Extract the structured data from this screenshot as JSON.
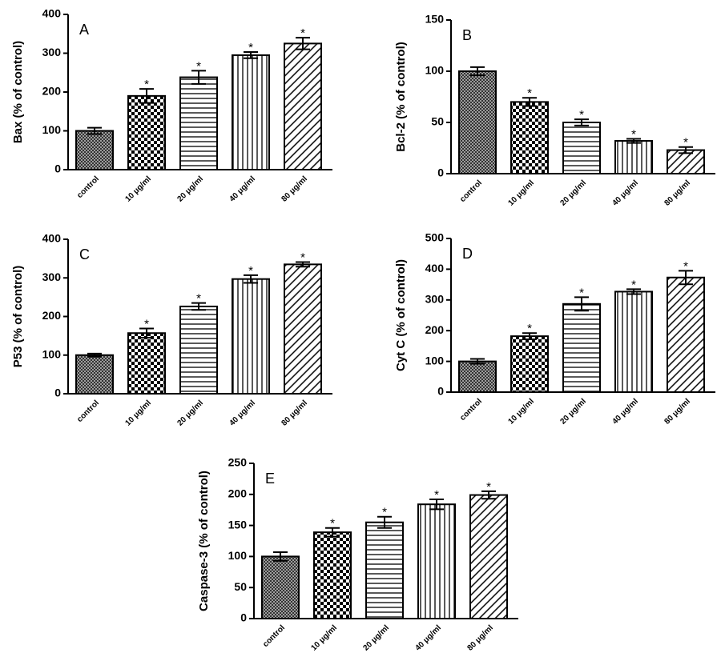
{
  "chart_data": [
    {
      "type": "bar",
      "label": "A",
      "ylabel": "Bax  (% of control)",
      "categories": [
        "control",
        "10 μg/ml",
        "20 μg/ml",
        "40 μg/ml",
        "80 μg/ml"
      ],
      "values": [
        100,
        190,
        238,
        295,
        325
      ],
      "errors": [
        8,
        18,
        17,
        8,
        15
      ],
      "annotations": [
        null,
        "*",
        "*",
        "*",
        "*"
      ],
      "patterns": [
        "crosshatch",
        "checker",
        "horizontal",
        "vertical",
        "diagonal"
      ],
      "color": "#000000",
      "ylim": [
        0,
        400
      ],
      "yticks": [
        0,
        100,
        200,
        300,
        400
      ]
    },
    {
      "type": "bar",
      "label": "B",
      "ylabel": "Bcl-2  (% of control)",
      "categories": [
        "control",
        "10 μg/ml",
        "20 μg/ml",
        "40 μg/ml",
        "80 μg/ml"
      ],
      "values": [
        100,
        70,
        50,
        32,
        23
      ],
      "errors": [
        4,
        4,
        3,
        2,
        3
      ],
      "annotations": [
        null,
        "*",
        "*",
        "*",
        "*"
      ],
      "patterns": [
        "crosshatch",
        "checker",
        "horizontal",
        "vertical",
        "diagonal"
      ],
      "color": "#000000",
      "ylim": [
        0,
        150
      ],
      "yticks": [
        0,
        50,
        100,
        150
      ]
    },
    {
      "type": "bar",
      "label": "C",
      "ylabel": "P53 (% of control)",
      "categories": [
        "control",
        "10 μg/ml",
        "20 μg/ml",
        "40 μg/ml",
        "80 μg/ml"
      ],
      "values": [
        100,
        157,
        226,
        297,
        335
      ],
      "errors": [
        4,
        12,
        9,
        10,
        6
      ],
      "annotations": [
        null,
        "*",
        "*",
        "*",
        "*"
      ],
      "patterns": [
        "crosshatch",
        "checker",
        "horizontal",
        "vertical",
        "diagonal"
      ],
      "color": "#000000",
      "ylim": [
        0,
        400
      ],
      "yticks": [
        0,
        100,
        200,
        300,
        400
      ]
    },
    {
      "type": "bar",
      "label": "D",
      "ylabel": "Cyt C  (% of control)",
      "categories": [
        "control",
        "10 μg/ml",
        "20 μg/ml",
        "40 μg/ml",
        "80 μg/ml"
      ],
      "values": [
        100,
        182,
        287,
        327,
        373
      ],
      "errors": [
        8,
        10,
        22,
        8,
        22
      ],
      "annotations": [
        null,
        "*",
        "*",
        "*",
        "*"
      ],
      "patterns": [
        "crosshatch",
        "checker",
        "horizontal",
        "vertical",
        "diagonal"
      ],
      "color": "#000000",
      "ylim": [
        0,
        500
      ],
      "yticks": [
        0,
        100,
        200,
        300,
        400,
        500
      ]
    },
    {
      "type": "bar",
      "label": "E",
      "ylabel": "Caspase-3 (% of control)",
      "categories": [
        "control",
        "10 μg/ml",
        "20 μg/ml",
        "40 μg/ml",
        "80 μg/ml"
      ],
      "values": [
        100,
        139,
        155,
        184,
        199
      ],
      "errors": [
        7,
        7,
        9,
        8,
        6
      ],
      "annotations": [
        null,
        "*",
        "*",
        "*",
        "*"
      ],
      "patterns": [
        "crosshatch",
        "checker",
        "horizontal",
        "vertical",
        "diagonal"
      ],
      "color": "#000000",
      "ylim": [
        0,
        250
      ],
      "yticks": [
        0,
        50,
        100,
        150,
        200,
        250
      ]
    }
  ]
}
